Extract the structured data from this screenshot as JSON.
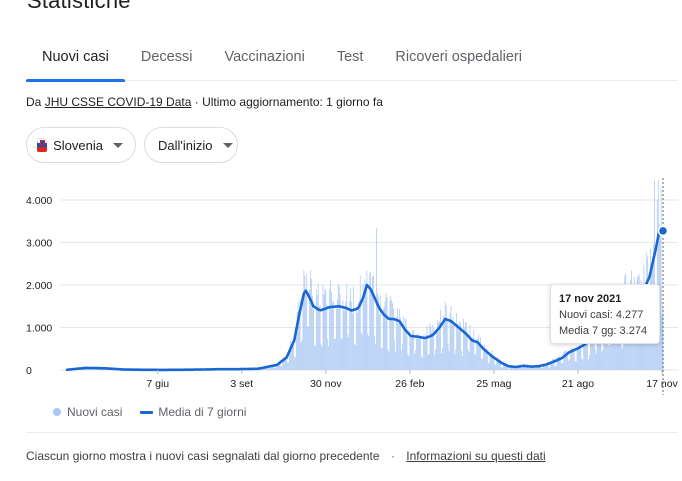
{
  "page": {
    "title": "Statistiche"
  },
  "tabs": [
    {
      "label": "Nuovi casi",
      "active": true
    },
    {
      "label": "Decessi",
      "active": false
    },
    {
      "label": "Vaccinazioni",
      "active": false
    },
    {
      "label": "Test",
      "active": false
    },
    {
      "label": "Ricoveri ospedalieri",
      "active": false
    }
  ],
  "source": {
    "prefix": "Da",
    "link_text": "JHU CSSE COVID-19 Data",
    "separator": "·",
    "updated": "Ultimo aggiornamento: 1 giorno fa"
  },
  "filters": {
    "region": {
      "label": "Slovenia",
      "icon": "slovenia-flag-icon"
    },
    "period": {
      "label": "Dall'inizio"
    }
  },
  "chart_data": {
    "type": "bar",
    "y_ticks": [
      "4.000",
      "3.000",
      "2.000",
      "1.000",
      "0"
    ],
    "y_tick_values": [
      4000,
      3000,
      2000,
      1000,
      0
    ],
    "ylim": [
      0,
      4500
    ],
    "x_tick_labels": [
      "7 giu",
      "3 set",
      "30 nov",
      "26 feb",
      "25 mag",
      "21 ago",
      "17 nov"
    ],
    "x_tick_days": [
      95,
      183,
      271,
      359,
      447,
      535,
      623
    ],
    "series": [
      {
        "name": "Nuovi casi",
        "kind": "daily-bars",
        "color": "#a9c7f4",
        "note": "daily bars generated around 7-day average"
      },
      {
        "name": "Media di 7 giorni",
        "kind": "line",
        "color": "#1967d2",
        "points": [
          [
            0,
            5
          ],
          [
            20,
            50
          ],
          [
            40,
            40
          ],
          [
            60,
            10
          ],
          [
            80,
            5
          ],
          [
            100,
            3
          ],
          [
            120,
            5
          ],
          [
            140,
            10
          ],
          [
            160,
            20
          ],
          [
            180,
            20
          ],
          [
            200,
            30
          ],
          [
            220,
            120
          ],
          [
            230,
            300
          ],
          [
            238,
            700
          ],
          [
            244,
            1400
          ],
          [
            249,
            1900
          ],
          [
            253,
            1750
          ],
          [
            258,
            1500
          ],
          [
            265,
            1400
          ],
          [
            275,
            1480
          ],
          [
            285,
            1500
          ],
          [
            292,
            1460
          ],
          [
            298,
            1400
          ],
          [
            305,
            1450
          ],
          [
            310,
            1700
          ],
          [
            314,
            2000
          ],
          [
            318,
            1900
          ],
          [
            322,
            1700
          ],
          [
            327,
            1450
          ],
          [
            332,
            1300
          ],
          [
            337,
            1200
          ],
          [
            342,
            1200
          ],
          [
            348,
            1150
          ],
          [
            354,
            950
          ],
          [
            360,
            800
          ],
          [
            368,
            780
          ],
          [
            375,
            750
          ],
          [
            383,
            820
          ],
          [
            390,
            1000
          ],
          [
            396,
            1200
          ],
          [
            402,
            1150
          ],
          [
            410,
            1000
          ],
          [
            418,
            850
          ],
          [
            424,
            700
          ],
          [
            430,
            650
          ],
          [
            436,
            500
          ],
          [
            444,
            340
          ],
          [
            454,
            180
          ],
          [
            462,
            90
          ],
          [
            470,
            70
          ],
          [
            478,
            100
          ],
          [
            486,
            80
          ],
          [
            494,
            90
          ],
          [
            502,
            130
          ],
          [
            510,
            200
          ],
          [
            518,
            280
          ],
          [
            526,
            420
          ],
          [
            534,
            500
          ],
          [
            542,
            600
          ],
          [
            552,
            800
          ],
          [
            560,
            1000
          ],
          [
            568,
            1100
          ],
          [
            578,
            1300
          ],
          [
            588,
            1700
          ],
          [
            597,
            1600
          ],
          [
            604,
            1900
          ],
          [
            610,
            2200
          ],
          [
            615,
            2700
          ],
          [
            620,
            3250
          ],
          [
            624,
            3274
          ]
        ]
      }
    ],
    "marker": {
      "day": 624,
      "value": 3274
    },
    "tooltip": {
      "date": "17 nov 2021",
      "new_cases_label": "Nuovi casi: 4.277",
      "avg_label": "Media 7 gg: 3.274"
    },
    "legend": [
      "Nuovi casi",
      "Media di 7 giorni"
    ]
  },
  "footer": {
    "note": "Ciascun giorno mostra i nuovi casi segnalati dal giorno precedente",
    "separator": "·",
    "link_text": "Informazioni su questi dati"
  }
}
